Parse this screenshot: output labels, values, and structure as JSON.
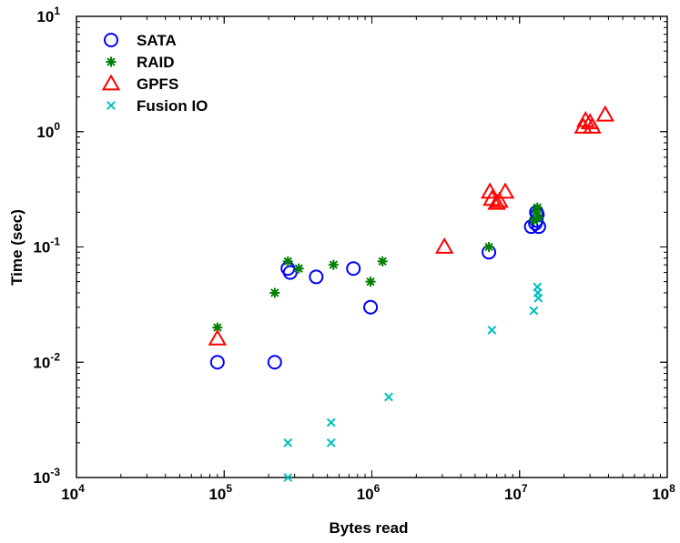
{
  "chart_data": {
    "type": "scatter",
    "xlabel": "Bytes read",
    "ylabel": "Time (sec)",
    "xscale": "log",
    "yscale": "log",
    "xlim": [
      10000,
      100000000
    ],
    "ylim": [
      0.001,
      10
    ],
    "grid": false,
    "legend_position": "top-left",
    "x_ticks": [
      {
        "value": 10000,
        "base": "10",
        "exp": "4"
      },
      {
        "value": 100000,
        "base": "10",
        "exp": "5"
      },
      {
        "value": 1000000,
        "base": "10",
        "exp": "6"
      },
      {
        "value": 10000000,
        "base": "10",
        "exp": "7"
      },
      {
        "value": 100000000,
        "base": "10",
        "exp": "8"
      }
    ],
    "y_ticks": [
      {
        "value": 0.001,
        "base": "10",
        "exp": "-3"
      },
      {
        "value": 0.01,
        "base": "10",
        "exp": "-2"
      },
      {
        "value": 0.1,
        "base": "10",
        "exp": "-1"
      },
      {
        "value": 1,
        "base": "10",
        "exp": "0"
      },
      {
        "value": 10,
        "base": "10",
        "exp": "1"
      }
    ],
    "series": [
      {
        "name": "SATA",
        "marker": "circle",
        "color": "#0000ff",
        "points": [
          [
            90000,
            0.01
          ],
          [
            220000,
            0.01
          ],
          [
            270000,
            0.065
          ],
          [
            280000,
            0.06
          ],
          [
            420000,
            0.055
          ],
          [
            750000,
            0.065
          ],
          [
            980000,
            0.03
          ],
          [
            6200000,
            0.09
          ],
          [
            12000000,
            0.15
          ],
          [
            12800000,
            0.16
          ],
          [
            13000000,
            0.2
          ],
          [
            13200000,
            0.19
          ],
          [
            13500000,
            0.15
          ],
          [
            13000000,
            0.17
          ]
        ]
      },
      {
        "name": "RAID",
        "marker": "asterisk",
        "color": "#008000",
        "points": [
          [
            90000,
            0.02
          ],
          [
            220000,
            0.04
          ],
          [
            270000,
            0.075
          ],
          [
            320000,
            0.065
          ],
          [
            550000,
            0.07
          ],
          [
            980000,
            0.05
          ],
          [
            1180000,
            0.075
          ],
          [
            6200000,
            0.1
          ],
          [
            12500000,
            0.17
          ],
          [
            13000000,
            0.2
          ],
          [
            13200000,
            0.22
          ],
          [
            13500000,
            0.18
          ]
        ]
      },
      {
        "name": "GPFS",
        "marker": "triangle",
        "color": "#ff0000",
        "points": [
          [
            90000,
            0.016
          ],
          [
            3100000,
            0.1
          ],
          [
            6300000,
            0.3
          ],
          [
            6500000,
            0.26
          ],
          [
            7000000,
            0.24
          ],
          [
            7300000,
            0.25
          ],
          [
            8000000,
            0.3
          ],
          [
            27000000,
            1.1
          ],
          [
            28000000,
            1.25
          ],
          [
            30000000,
            1.2
          ],
          [
            31000000,
            1.1
          ],
          [
            38000000,
            1.4
          ]
        ]
      },
      {
        "name": "Fusion IO",
        "marker": "x",
        "color": "#00bfbf",
        "points": [
          [
            270000,
            0.001
          ],
          [
            270000,
            0.002
          ],
          [
            530000,
            0.003
          ],
          [
            530000,
            0.002
          ],
          [
            1300000,
            0.005
          ],
          [
            6500000,
            0.019
          ],
          [
            12500000,
            0.028
          ],
          [
            13200000,
            0.045
          ],
          [
            13300000,
            0.04
          ],
          [
            13400000,
            0.036
          ]
        ]
      }
    ]
  }
}
